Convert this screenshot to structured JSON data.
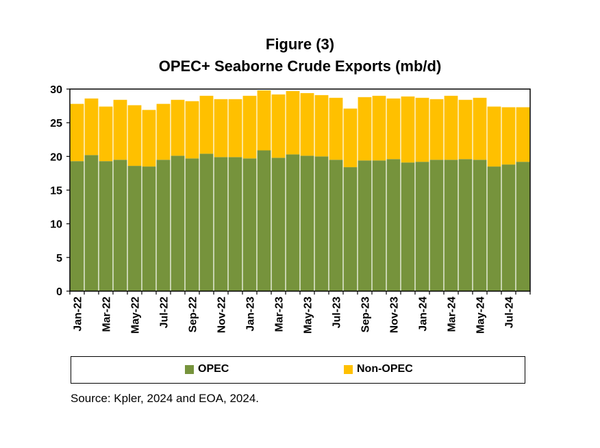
{
  "figure_label": "Figure (3)",
  "source": "Source: Kpler, 2024 and EOA, 2024.",
  "colors": {
    "opec": "#76933C",
    "non_opec": "#FFC000",
    "axis": "#000000"
  },
  "chart_data": {
    "type": "bar",
    "stacked": true,
    "title": "OPEC+ Seaborne Crude Exports (mb/d)",
    "xlabel": "",
    "ylabel": "",
    "ylim": [
      0,
      30
    ],
    "yticks": [
      0,
      5,
      10,
      15,
      20,
      25,
      30
    ],
    "grid": false,
    "legend_position": "bottom",
    "categories": [
      "Jan-22",
      "Feb-22",
      "Mar-22",
      "Apr-22",
      "May-22",
      "Jun-22",
      "Jul-22",
      "Aug-22",
      "Sep-22",
      "Oct-22",
      "Nov-22",
      "Dec-22",
      "Jan-23",
      "Feb-23",
      "Mar-23",
      "Apr-23",
      "May-23",
      "Jun-23",
      "Jul-23",
      "Aug-23",
      "Sep-23",
      "Oct-23",
      "Nov-23",
      "Dec-23",
      "Jan-24",
      "Feb-24",
      "Mar-24",
      "Apr-24",
      "May-24",
      "Jun-24",
      "Jul-24",
      "Aug-24"
    ],
    "tick_labels_shown": [
      "Jan-22",
      "Mar-22",
      "May-22",
      "Jul-22",
      "Sep-22",
      "Nov-22",
      "Jan-23",
      "Mar-23",
      "May-23",
      "Jul-23",
      "Sep-23",
      "Nov-23",
      "Jan-24",
      "Mar-24",
      "May-24",
      "Jul-24"
    ],
    "series": [
      {
        "name": "OPEC",
        "values": [
          19.3,
          20.2,
          19.3,
          19.5,
          18.6,
          18.5,
          19.5,
          20.1,
          19.7,
          20.4,
          19.9,
          19.9,
          19.7,
          20.9,
          19.8,
          20.3,
          20.1,
          20.0,
          19.5,
          18.4,
          19.4,
          19.4,
          19.6,
          19.1,
          19.2,
          19.5,
          19.5,
          19.6,
          19.5,
          18.5,
          18.8,
          19.2
        ]
      },
      {
        "name": "Non-OPEC",
        "values": [
          8.5,
          8.4,
          8.1,
          8.9,
          9.0,
          8.4,
          8.3,
          8.3,
          8.5,
          8.6,
          8.6,
          8.6,
          9.3,
          8.9,
          9.4,
          9.4,
          9.3,
          9.1,
          9.2,
          8.7,
          9.4,
          9.6,
          9.0,
          9.8,
          9.5,
          9.0,
          9.5,
          8.8,
          9.2,
          8.9,
          8.5,
          8.1
        ]
      }
    ]
  }
}
